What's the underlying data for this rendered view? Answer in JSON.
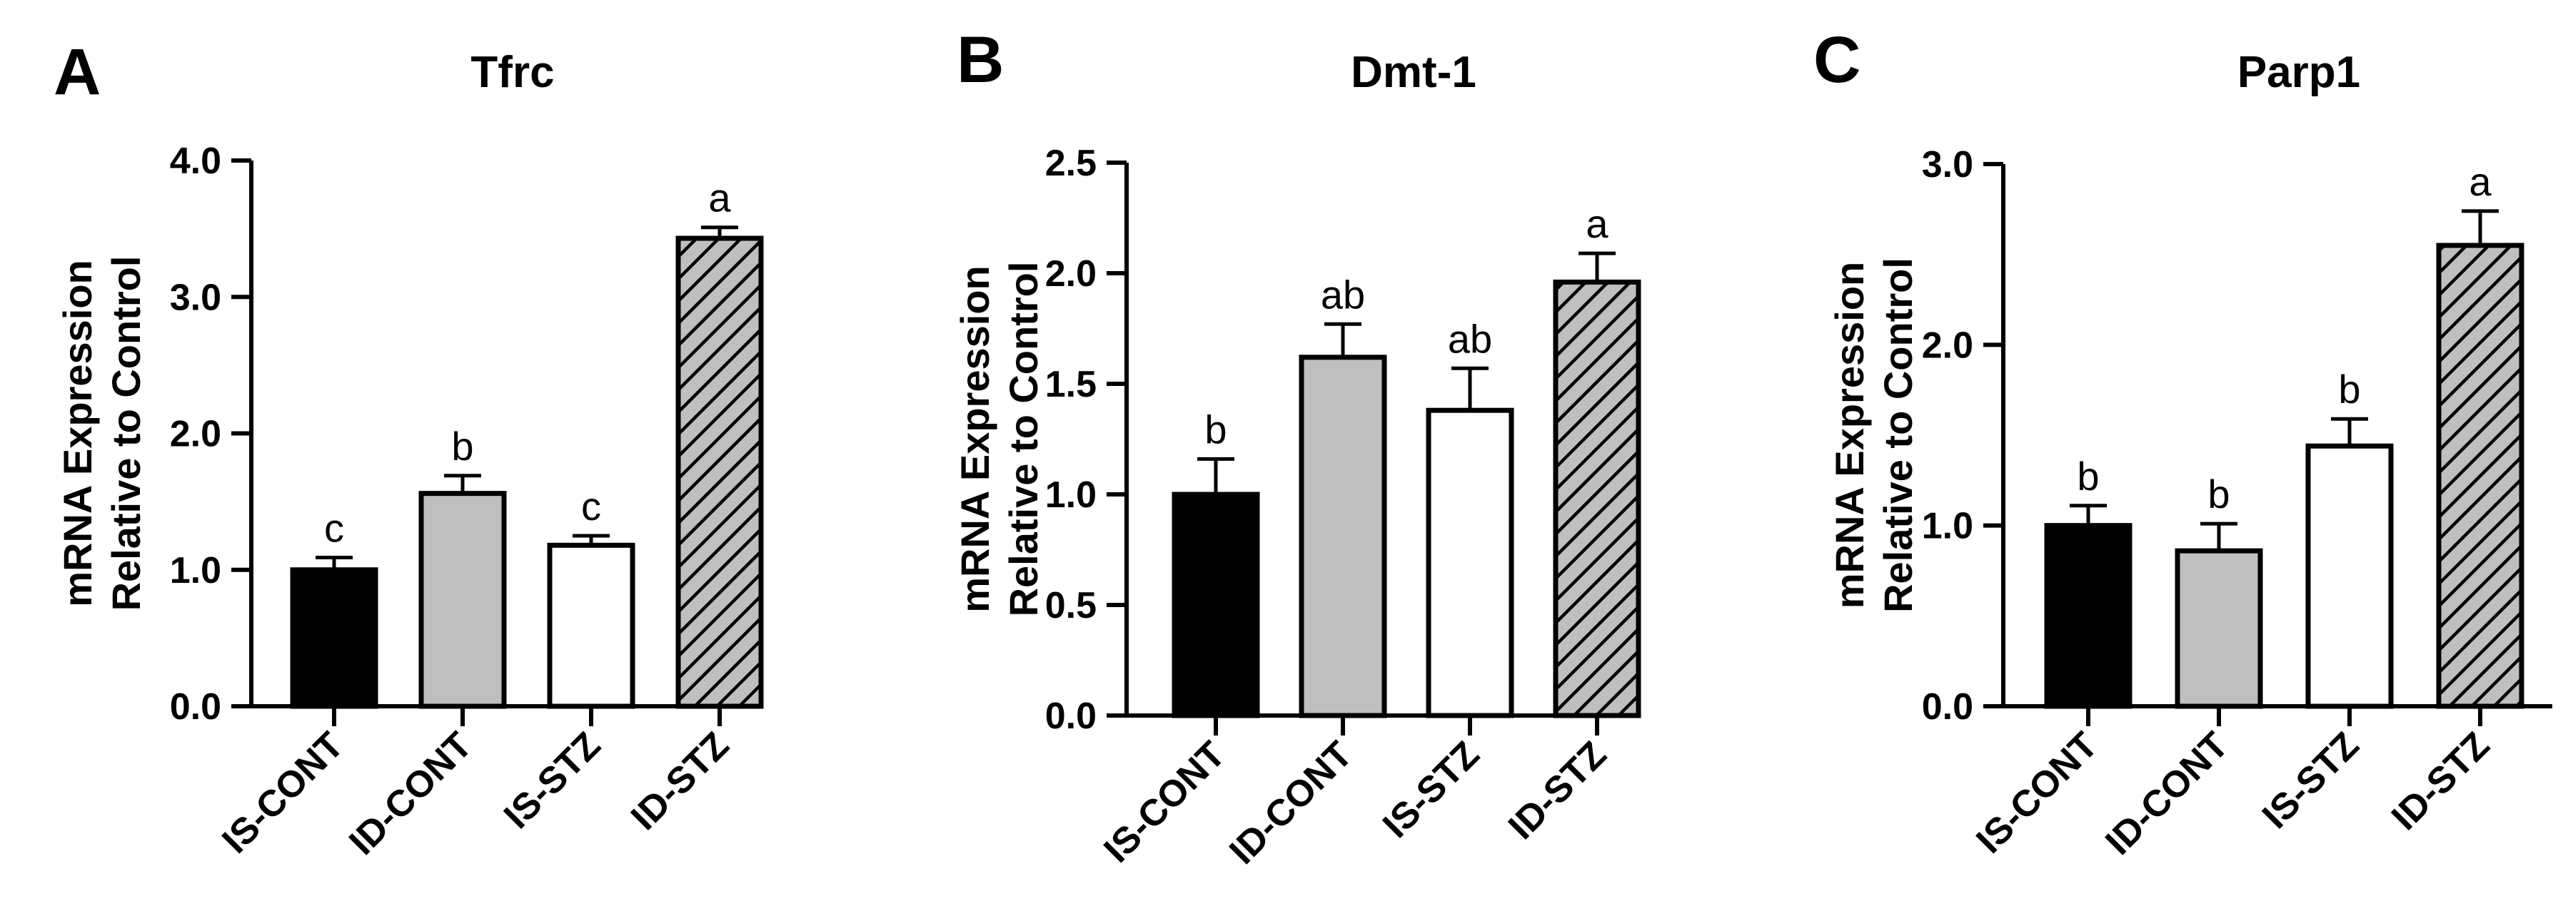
{
  "colors": {
    "axis": "#000000",
    "bar_outline": "#000000",
    "series": [
      "#000000",
      "#bfbfbf",
      "#ffffff",
      "#bfbfbf"
    ],
    "hatch_lines": "#000000"
  },
  "chart_data": [
    {
      "type": "bar",
      "panel_letter": "A",
      "title": "Tfrc",
      "ylabel": [
        "mRNA Expression",
        "Relative to Control"
      ],
      "xlabel": "",
      "categories": [
        "IS-CONT",
        "ID-CONT",
        "IS-STZ",
        "ID-STZ"
      ],
      "values": [
        1.0,
        1.56,
        1.18,
        3.43
      ],
      "errors": [
        0.09,
        0.13,
        0.07,
        0.08
      ],
      "significance": [
        "c",
        "b",
        "c",
        "a"
      ],
      "ylim": [
        0,
        4.0
      ],
      "yticks": [
        0.0,
        1.0,
        2.0,
        3.0,
        4.0
      ],
      "ytick_labels": [
        "0.0",
        "1.0",
        "2.0",
        "3.0",
        "4.0"
      ],
      "fills": [
        "solid",
        "solid",
        "solid",
        "hatched"
      ],
      "grid": false,
      "legend": "none"
    },
    {
      "type": "bar",
      "panel_letter": "B",
      "title": "Dmt-1",
      "ylabel": [
        "mRNA Expression",
        "Relative to Control"
      ],
      "xlabel": "",
      "categories": [
        "IS-CONT",
        "ID-CONT",
        "IS-STZ",
        "ID-STZ"
      ],
      "values": [
        1.0,
        1.62,
        1.38,
        1.96
      ],
      "errors": [
        0.16,
        0.15,
        0.19,
        0.13
      ],
      "significance": [
        "b",
        "ab",
        "ab",
        "a"
      ],
      "ylim": [
        0,
        2.5
      ],
      "yticks": [
        0.0,
        0.5,
        1.0,
        1.5,
        2.0,
        2.5
      ],
      "ytick_labels": [
        "0.0",
        "0.5",
        "1.0",
        "1.5",
        "2.0",
        "2.5"
      ],
      "fills": [
        "solid",
        "solid",
        "solid",
        "hatched"
      ],
      "grid": false,
      "legend": "none"
    },
    {
      "type": "bar",
      "panel_letter": "C",
      "title": "Parp1",
      "ylabel": [
        "mRNA Expression",
        "Relative to Control"
      ],
      "xlabel": "",
      "categories": [
        "IS-CONT",
        "ID-CONT",
        "IS-STZ",
        "ID-STZ"
      ],
      "values": [
        1.0,
        0.86,
        1.44,
        2.55
      ],
      "errors": [
        0.11,
        0.15,
        0.15,
        0.19
      ],
      "significance": [
        "b",
        "b",
        "b",
        "a"
      ],
      "ylim": [
        0,
        3.0
      ],
      "yticks": [
        0.0,
        1.0,
        2.0,
        3.0
      ],
      "ytick_labels": [
        "0.0",
        "1.0",
        "2.0",
        "3.0"
      ],
      "fills": [
        "solid",
        "solid",
        "solid",
        "hatched"
      ],
      "grid": false,
      "legend": "none"
    }
  ]
}
